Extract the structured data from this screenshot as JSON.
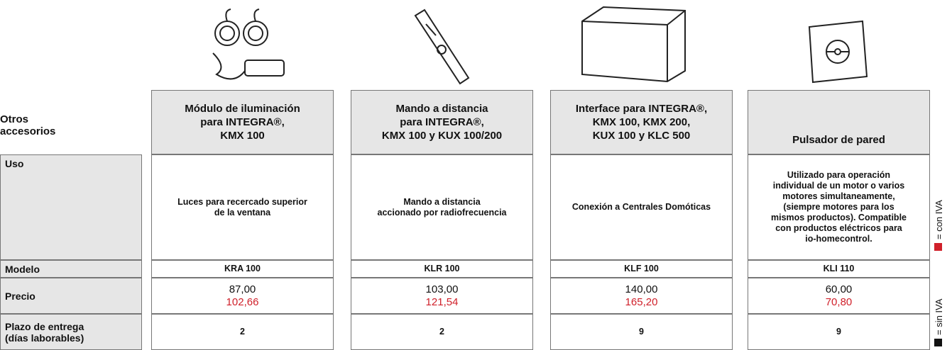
{
  "header": {
    "title": "Otros accesorios"
  },
  "products": [
    {
      "name": [
        "Módulo de iluminación",
        "para INTEGRA®,",
        "KMX 100"
      ],
      "uso": [
        "Luces para recercado superior",
        "de la ventana"
      ],
      "modelo": "KRA 100",
      "precio": "87,00",
      "precio_iva": "102,66",
      "plazo": "2"
    },
    {
      "name": [
        "Mando a distancia",
        "para INTEGRA®,",
        "KMX 100 y KUX 100/200"
      ],
      "uso": [
        "Mando a distancia",
        "accionado por radiofrecuencia"
      ],
      "modelo": "KLR 100",
      "precio": "103,00",
      "precio_iva": "121,54",
      "plazo": "2"
    },
    {
      "name": [
        "Interface para INTEGRA®,",
        "KMX 100, KMX 200,",
        "KUX 100 y KLC 500"
      ],
      "uso": [
        "Conexión a Centrales Domóticas"
      ],
      "modelo": "KLF 100",
      "precio": "140,00",
      "precio_iva": "165,20",
      "plazo": "9"
    },
    {
      "name": [
        "Pulsador de pared"
      ],
      "uso": [
        "Utilizado para operación",
        "individual de un motor o varios",
        "motores simultaneamente,",
        "(siempre motores para los",
        "mismos productos). Compatible",
        "con productos eléctricos para",
        "io-homecontrol."
      ],
      "modelo": "KLI 110",
      "precio": "60,00",
      "precio_iva": "70,80",
      "plazo": "9"
    }
  ],
  "rows": {
    "uso": "Uso",
    "modelo": "Modelo",
    "precio": "Precio",
    "plazo": [
      "Plazo de entrega",
      "(días laborables)"
    ]
  },
  "legend": {
    "con_iva": "= con IVA",
    "sin_iva": "= sin IVA"
  }
}
